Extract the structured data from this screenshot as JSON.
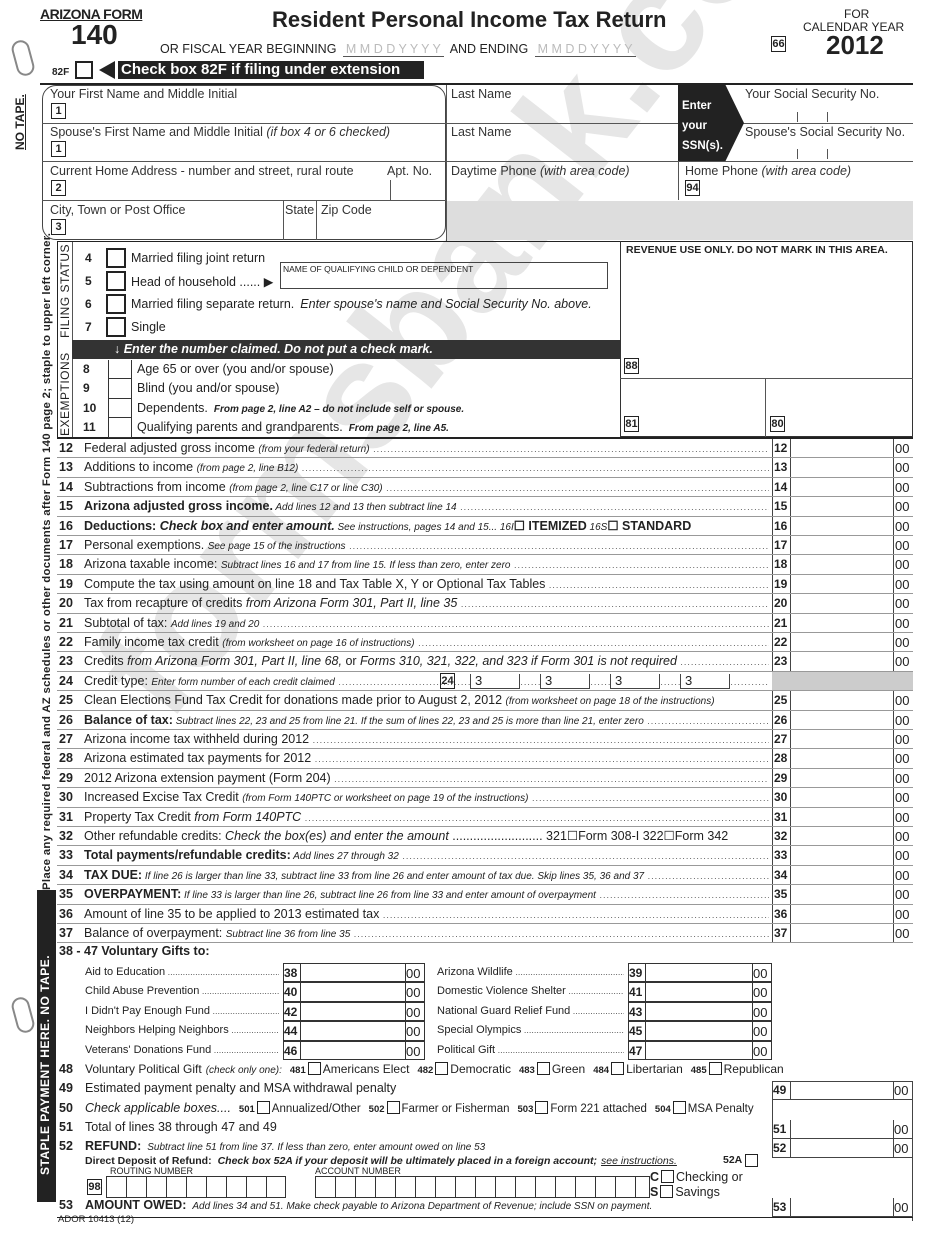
{
  "header": {
    "form_label": "ARIZONA FORM",
    "form_number": "140",
    "title": "Resident Personal Income Tax Return",
    "for": "FOR",
    "calendar_year_label": "CALENDAR YEAR",
    "year": "2012",
    "fiscal_beginning": "OR FISCAL YEAR BEGINNING",
    "date_placeholder": "M M D D Y Y Y Y",
    "and_ending": "AND ENDING",
    "box66": "66",
    "box82f": "82F",
    "extension_label": "Check box 82F if filing under extension"
  },
  "side": {
    "no_tape": "NO TAPE.",
    "place_text": "Place any required federal and AZ schedules or other documents after Form 140 page 2; staple to upper left corner.",
    "staple_text": "STAPLE PAYMENT HERE.  NO TAPE.",
    "filing_status": "FILING STATUS",
    "exemptions": "EXEMPTIONS"
  },
  "names": {
    "first": "Your First Name and Middle Initial",
    "last": "Last Name",
    "ssn": "Your Social Security No.",
    "spouse_first": "Spouse's First Name and Middle Initial",
    "spouse_first_note": "(if box 4 or 6 checked)",
    "spouse_last": "Last Name",
    "spouse_ssn": "Spouse's Social Security No.",
    "enter_ssn": [
      "Enter",
      "your",
      "SSN(s)."
    ],
    "address": "Current Home Address - number and street, rural route",
    "apt": "Apt. No.",
    "day_phone": "Daytime Phone",
    "day_phone_note": "(with area code)",
    "home_phone": "Home Phone",
    "home_phone_note": "(with area code)",
    "box94": "94",
    "city": "City, Town or Post Office",
    "state": "State",
    "zip": "Zip Code",
    "box1": "1",
    "box2": "2",
    "box3": "3"
  },
  "filing": {
    "items": [
      {
        "num": "4",
        "label": "Married filing joint return"
      },
      {
        "num": "5",
        "label": "Head of household ...... ▶"
      },
      {
        "num": "6",
        "label": "Married filing separate return.",
        "note": "Enter spouse's name and Social Security No. above."
      },
      {
        "num": "7",
        "label": "Single"
      }
    ],
    "qualifying_label": "NAME OF QUALIFYING CHILD OR DEPENDENT",
    "bar": "↓  Enter the number claimed.  Do not put a check mark."
  },
  "exemptions": [
    {
      "num": "8",
      "label": "Age 65 or over (you and/or spouse)"
    },
    {
      "num": "9",
      "label": "Blind (you and/or spouse)"
    },
    {
      "num": "10",
      "label": "Dependents.",
      "note": "From page 2, line A2 – do not include self or spouse."
    },
    {
      "num": "11",
      "label": "Qualifying parents and grandparents.",
      "note": "From page 2, line A5."
    }
  ],
  "revenue": {
    "title": "REVENUE USE ONLY. DO NOT MARK IN THIS AREA.",
    "box88": "88",
    "box81": "81",
    "box80": "80"
  },
  "lines": [
    {
      "num": "12",
      "segs": [
        [
          "Federal adjusted gross income ",
          ""
        ],
        [
          "(from your federal return)",
          "s"
        ]
      ]
    },
    {
      "num": "13",
      "segs": [
        [
          "Additions to income ",
          ""
        ],
        [
          "(from page 2, line B12)",
          "s"
        ]
      ]
    },
    {
      "num": "14",
      "segs": [
        [
          "Subtractions from income ",
          ""
        ],
        [
          "(from page 2, line C17 or line C30)",
          "s"
        ]
      ]
    },
    {
      "num": "15",
      "segs": [
        [
          "Arizona adjusted gross income.",
          "b"
        ],
        [
          "  Add lines 12 and 13 then subtract line 14",
          "s"
        ]
      ]
    },
    {
      "num": "16",
      "segs": [
        [
          "Deductions:  ",
          "b"
        ],
        [
          "Check box and enter amount.",
          "bi"
        ],
        [
          "  See instructions, pages 14 and 15... 16I",
          "s"
        ],
        [
          "☐ ITEMIZED",
          "b"
        ],
        [
          "   16S",
          "s"
        ],
        [
          "☐ STANDARD",
          "b"
        ]
      ],
      "nodots": true
    },
    {
      "num": "17",
      "segs": [
        [
          "Personal exemptions.  ",
          ""
        ],
        [
          "See page 15 of the instructions",
          "s"
        ]
      ]
    },
    {
      "num": "18",
      "segs": [
        [
          "Arizona taxable income:  ",
          ""
        ],
        [
          "Subtract lines 16 and 17 from line 15.  If less than zero, enter zero",
          "s"
        ]
      ]
    },
    {
      "num": "19",
      "segs": [
        [
          "Compute the tax using amount on line 18 and Tax Table X, Y or Optional Tax Tables",
          ""
        ]
      ]
    },
    {
      "num": "20",
      "segs": [
        [
          "Tax from recapture of credits ",
          ""
        ],
        [
          "from Arizona Form 301, Part II, line 35",
          "i"
        ]
      ]
    },
    {
      "num": "21",
      "segs": [
        [
          "Subtotal of tax:  ",
          ""
        ],
        [
          "Add lines 19 and 20",
          "s"
        ]
      ]
    },
    {
      "num": "22",
      "segs": [
        [
          "Family income tax credit ",
          ""
        ],
        [
          "(from worksheet on page 16 of instructions)",
          "s"
        ]
      ]
    },
    {
      "num": "23",
      "segs": [
        [
          "Credits ",
          ""
        ],
        [
          "from Arizona Form 301, Part II, line 68,",
          "i"
        ],
        [
          " or ",
          ""
        ],
        [
          "Forms 310, 321, 322, and 323 if Form 301 is not required",
          "i"
        ]
      ]
    },
    {
      "num": "24",
      "segs": [
        [
          "Credit type:  ",
          ""
        ],
        [
          "Enter form number of each credit claimed",
          "s"
        ]
      ],
      "credit": {
        "box": "24",
        "prefix": "3"
      },
      "shaded": true
    },
    {
      "num": "25",
      "segs": [
        [
          "Clean Elections Fund Tax Credit for donations made prior to August 2, 2012 ",
          ""
        ],
        [
          "(from worksheet on page 18 of the instructions)",
          "s"
        ]
      ],
      "nodots": true
    },
    {
      "num": "26",
      "segs": [
        [
          "Balance of tax:",
          "b"
        ],
        [
          "  Subtract lines 22, 23 and 25 from line 21.  If the sum of lines 22, 23 and 25 is more than line 21, enter zero",
          "s"
        ]
      ]
    },
    {
      "num": "27",
      "segs": [
        [
          "Arizona income tax withheld during 2012",
          ""
        ]
      ]
    },
    {
      "num": "28",
      "segs": [
        [
          "Arizona estimated tax payments for 2012",
          ""
        ]
      ]
    },
    {
      "num": "29",
      "segs": [
        [
          "2012 Arizona extension payment (Form 204)",
          ""
        ]
      ]
    },
    {
      "num": "30",
      "segs": [
        [
          "Increased Excise Tax Credit ",
          ""
        ],
        [
          "(from Form 140PTC or worksheet on page 19 of the instructions)",
          "s"
        ]
      ]
    },
    {
      "num": "31",
      "segs": [
        [
          "Property Tax Credit ",
          ""
        ],
        [
          "from Form 140PTC",
          "i"
        ]
      ]
    },
    {
      "num": "32",
      "segs": [
        [
          "Other refundable credits:  ",
          ""
        ],
        [
          "Check the box(es) and enter the amount",
          "i"
        ],
        [
          " .......................... 321☐Form 308-I   322☐Form 342",
          ""
        ]
      ],
      "nodots": true
    },
    {
      "num": "33",
      "segs": [
        [
          "Total payments/refundable credits:",
          "b"
        ],
        [
          "  Add lines 27 through 32",
          "s"
        ]
      ]
    },
    {
      "num": "34",
      "segs": [
        [
          "TAX DUE:",
          "b"
        ],
        [
          "  If line 26 is larger than line 33, subtract line 33 from line 26 and enter amount of tax due. Skip lines 35, 36 and 37",
          "s"
        ]
      ]
    },
    {
      "num": "35",
      "segs": [
        [
          "OVERPAYMENT:",
          "b"
        ],
        [
          "  If line 33 is larger than line 26, subtract line 26 from line 33 and enter amount of overpayment",
          "s"
        ]
      ]
    },
    {
      "num": "36",
      "segs": [
        [
          "Amount of line 35 to be applied to 2013 estimated tax",
          ""
        ]
      ]
    },
    {
      "num": "37",
      "segs": [
        [
          "Balance of overpayment:  ",
          ""
        ],
        [
          "Subtract line 36 from line 35",
          "s"
        ]
      ]
    }
  ],
  "cents": "00",
  "gifts": {
    "title": "38 - 47 Voluntary Gifts to:",
    "left": [
      {
        "label": "Aid to Education",
        "num": "38"
      },
      {
        "label": "Child Abuse Prevention",
        "num": "40"
      },
      {
        "label": "I Didn't Pay Enough Fund",
        "num": "42"
      },
      {
        "label": "Neighbors Helping Neighbors",
        "num": "44"
      },
      {
        "label": "Veterans' Donations Fund",
        "num": "46"
      }
    ],
    "right": [
      {
        "label": "Arizona Wildlife",
        "num": "39"
      },
      {
        "label": "Domestic Violence Shelter",
        "num": "41"
      },
      {
        "label": "National Guard Relief Fund",
        "num": "43"
      },
      {
        "label": "Special Olympics",
        "num": "45"
      },
      {
        "label": "Political Gift",
        "num": "47"
      }
    ]
  },
  "bottom": {
    "l48": {
      "num": "48",
      "label": "Voluntary Political Gift",
      "note": "(check only one):",
      "opts": [
        {
          "code": "481",
          "label": "Americans Elect"
        },
        {
          "code": "482",
          "label": "Democratic"
        },
        {
          "code": "483",
          "label": "Green"
        },
        {
          "code": "484",
          "label": "Libertarian"
        },
        {
          "code": "485",
          "label": "Republican"
        }
      ]
    },
    "l49": {
      "num": "49",
      "label": "Estimated payment penalty and MSA withdrawal penalty"
    },
    "l50": {
      "num": "50",
      "label": "Check applicable boxes....",
      "opts": [
        {
          "code": "501",
          "label": "Annualized/Other"
        },
        {
          "code": "502",
          "label": "Farmer or Fisherman"
        },
        {
          "code": "503",
          "label": "Form 221 attached"
        },
        {
          "code": "504",
          "label": "MSA Penalty"
        }
      ]
    },
    "l51": {
      "num": "51",
      "label": "Total of lines 38 through 47 and 49"
    },
    "l52": {
      "num": "52",
      "label": "REFUND:",
      "note": "Subtract line 51 from line 37.  If less than zero, enter amount owed on line 53"
    },
    "deposit": {
      "label": "Direct Deposit of Refund:",
      "note": "Check box 52A if your deposit will be ultimately placed in a foreign account;",
      "link": "see instructions.",
      "box": "52A",
      "routing": "ROUTING NUMBER",
      "account": "ACCOUNT NUMBER",
      "box98": "98",
      "checking": "Checking or",
      "savings": "Savings",
      "c": "C",
      "s": "S"
    },
    "l53": {
      "num": "53",
      "label": "AMOUNT OWED:",
      "note": "Add lines 34 and 51.  Make check payable to Arizona Department of Revenue; include SSN on payment."
    },
    "footer": "ADOR 10413 (12)"
  },
  "watermark": "formsbank.com"
}
